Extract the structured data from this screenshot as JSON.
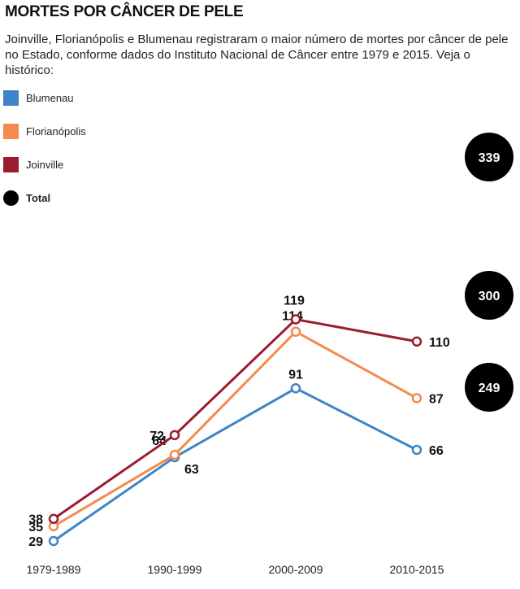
{
  "header": {
    "title": "MORTES POR CÂNCER DE PELE",
    "subtitle": "Joinville, Florianópolis e Blumenau registraram o maior número de mortes por câncer de pele no Estado, conforme dados do Instituto Nacional de Câncer entre 1979 e 2015. Veja o histórico:"
  },
  "legend": {
    "items": [
      {
        "label": "Blumenau",
        "color": "#3d85c6"
      },
      {
        "label": "Florianópolis",
        "color": "#f28b4c"
      },
      {
        "label": "Joinville",
        "color": "#9b1b30"
      },
      {
        "label": "Total",
        "color": "#000000"
      }
    ]
  },
  "chart_data": {
    "type": "line",
    "title": "MORTES POR CÂNCER DE PELE",
    "xlabel": "",
    "ylabel": "",
    "categories": [
      "1979-1989",
      "1990-1999",
      "2000-2009",
      "2010-2015"
    ],
    "ylim": [
      20,
      125
    ],
    "grid": false,
    "legend_position": "top-left",
    "series": [
      {
        "name": "Blumenau",
        "color": "#3d85c6",
        "values": [
          29,
          63,
          91,
          66
        ],
        "total": 249
      },
      {
        "name": "Florianópolis",
        "color": "#f28b4c",
        "values": [
          35,
          64,
          114,
          87
        ],
        "total": 300
      },
      {
        "name": "Joinville",
        "color": "#9b1b30",
        "values": [
          38,
          72,
          119,
          110
        ],
        "total": 339
      }
    ],
    "totals_label": "Total"
  }
}
